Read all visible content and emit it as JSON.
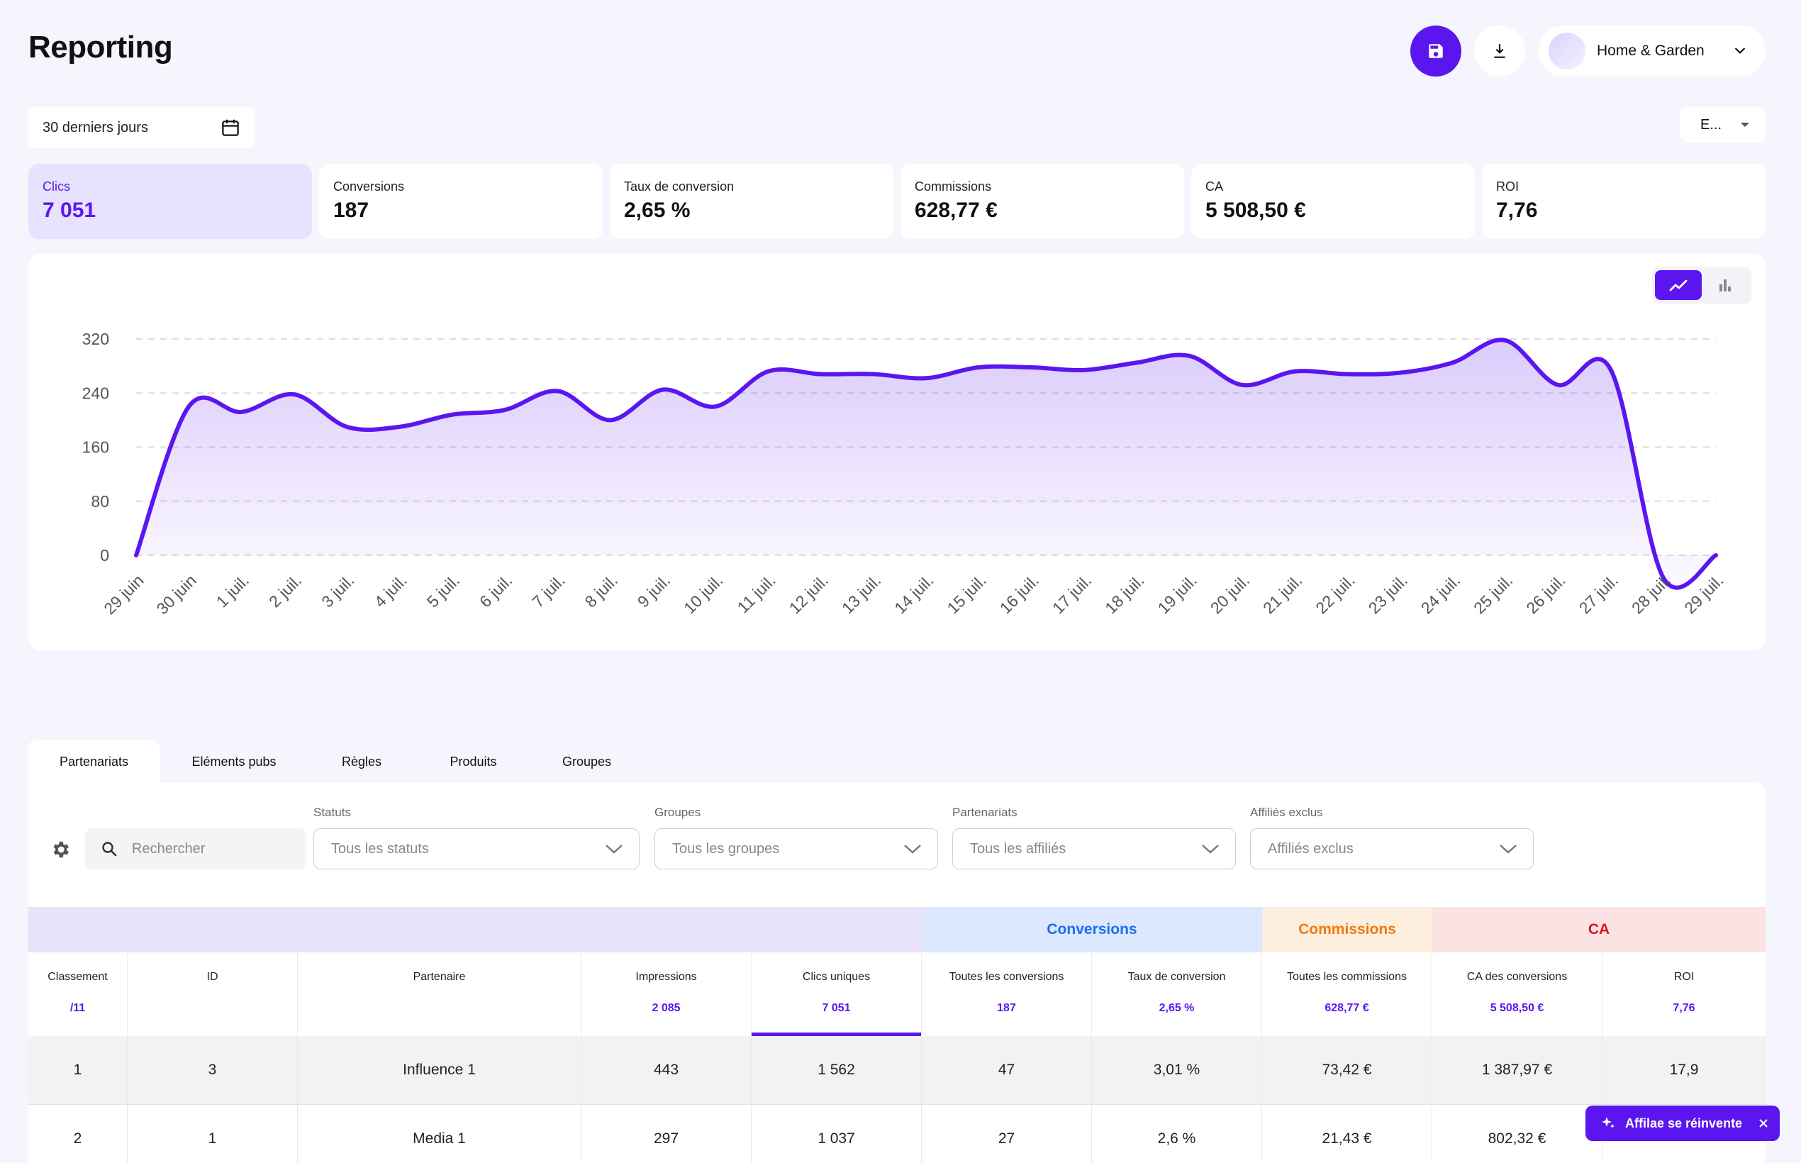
{
  "header": {
    "title": "Reporting",
    "account_name": "Home & Garden"
  },
  "date_range": {
    "label": "30 derniers jours"
  },
  "currency_select": {
    "label": "E..."
  },
  "kpis": [
    {
      "label": "Clics",
      "value": "7 051"
    },
    {
      "label": "Conversions",
      "value": "187"
    },
    {
      "label": "Taux de conversion",
      "value": "2,65 %"
    },
    {
      "label": "Commissions",
      "value": "628,77 €"
    },
    {
      "label": "CA",
      "value": "5 508,50 €"
    },
    {
      "label": "ROI",
      "value": "7,76"
    }
  ],
  "chart_data": {
    "type": "area",
    "x": [
      "29 juin",
      "30 juin",
      "1 juil.",
      "2 juil.",
      "3 juil.",
      "4 juil.",
      "5 juil.",
      "6 juil.",
      "7 juil.",
      "8 juil.",
      "9 juil.",
      "10 juil.",
      "11 juil.",
      "12 juil.",
      "13 juil.",
      "14 juil.",
      "15 juil.",
      "16 juil.",
      "17 juil.",
      "18 juil.",
      "19 juil.",
      "20 juil.",
      "21 juil.",
      "22 juil.",
      "23 juil.",
      "24 juil.",
      "25 juil.",
      "26 juil.",
      "27 juil.",
      "28 juil.",
      "29 juil."
    ],
    "series": [
      {
        "values": [
          0,
          220,
          212,
          238,
          190,
          190,
          208,
          215,
          243,
          200,
          245,
          220,
          272,
          268,
          268,
          262,
          278,
          278,
          274,
          285,
          295,
          252,
          272,
          268,
          270,
          285,
          318,
          252,
          275,
          -33,
          0
        ]
      }
    ],
    "ylim": [
      0,
      320
    ],
    "yticks": [
      0,
      80,
      160,
      240,
      320
    ],
    "grid": true,
    "color": "#5b16f0"
  },
  "tabs": [
    {
      "label": "Partenariats",
      "active": true
    },
    {
      "label": "Eléments pubs"
    },
    {
      "label": "Règles"
    },
    {
      "label": "Produits"
    },
    {
      "label": "Groupes"
    }
  ],
  "filters": {
    "search_placeholder": "Rechercher",
    "statuts": {
      "label": "Statuts",
      "value": "Tous les statuts"
    },
    "groupes": {
      "label": "Groupes",
      "value": "Tous les groupes"
    },
    "partenariats": {
      "label": "Partenariats",
      "value": "Tous les affiliés"
    },
    "exclus": {
      "label": "Affiliés exclus",
      "value": "Affiliés exclus"
    }
  },
  "group_headers": {
    "conversions": "Conversions",
    "commissions": "Commissions",
    "ca": "CA"
  },
  "columns": [
    {
      "label": "Classement",
      "total": "/11"
    },
    {
      "label": "ID",
      "total": ""
    },
    {
      "label": "Partenaire",
      "total": ""
    },
    {
      "label": "Impressions",
      "total": "2 085"
    },
    {
      "label": "Clics uniques",
      "total": "7 051"
    },
    {
      "label": "Toutes les conversions",
      "total": "187"
    },
    {
      "label": "Taux de conversion",
      "total": "2,65 %"
    },
    {
      "label": "Toutes les commissions",
      "total": "628,77 €"
    },
    {
      "label": "CA des conversions",
      "total": "5 508,50 €"
    },
    {
      "label": "ROI",
      "total": "7,76"
    }
  ],
  "rows": [
    [
      "1",
      "3",
      "Influence 1",
      "443",
      "1 562",
      "47",
      "3,01 %",
      "73,42 €",
      "1 387,97 €",
      "17,9"
    ],
    [
      "2",
      "1",
      "Media 1",
      "297",
      "1 037",
      "27",
      "2,6 %",
      "21,43 €",
      "802,32 €",
      ""
    ]
  ],
  "promo": {
    "label": "Affilae se réinvente"
  },
  "colors": {
    "accent": "#5b16f0",
    "conversions": "#1e6cf0",
    "commissions": "#f07a10",
    "ca": "#e0141e"
  }
}
